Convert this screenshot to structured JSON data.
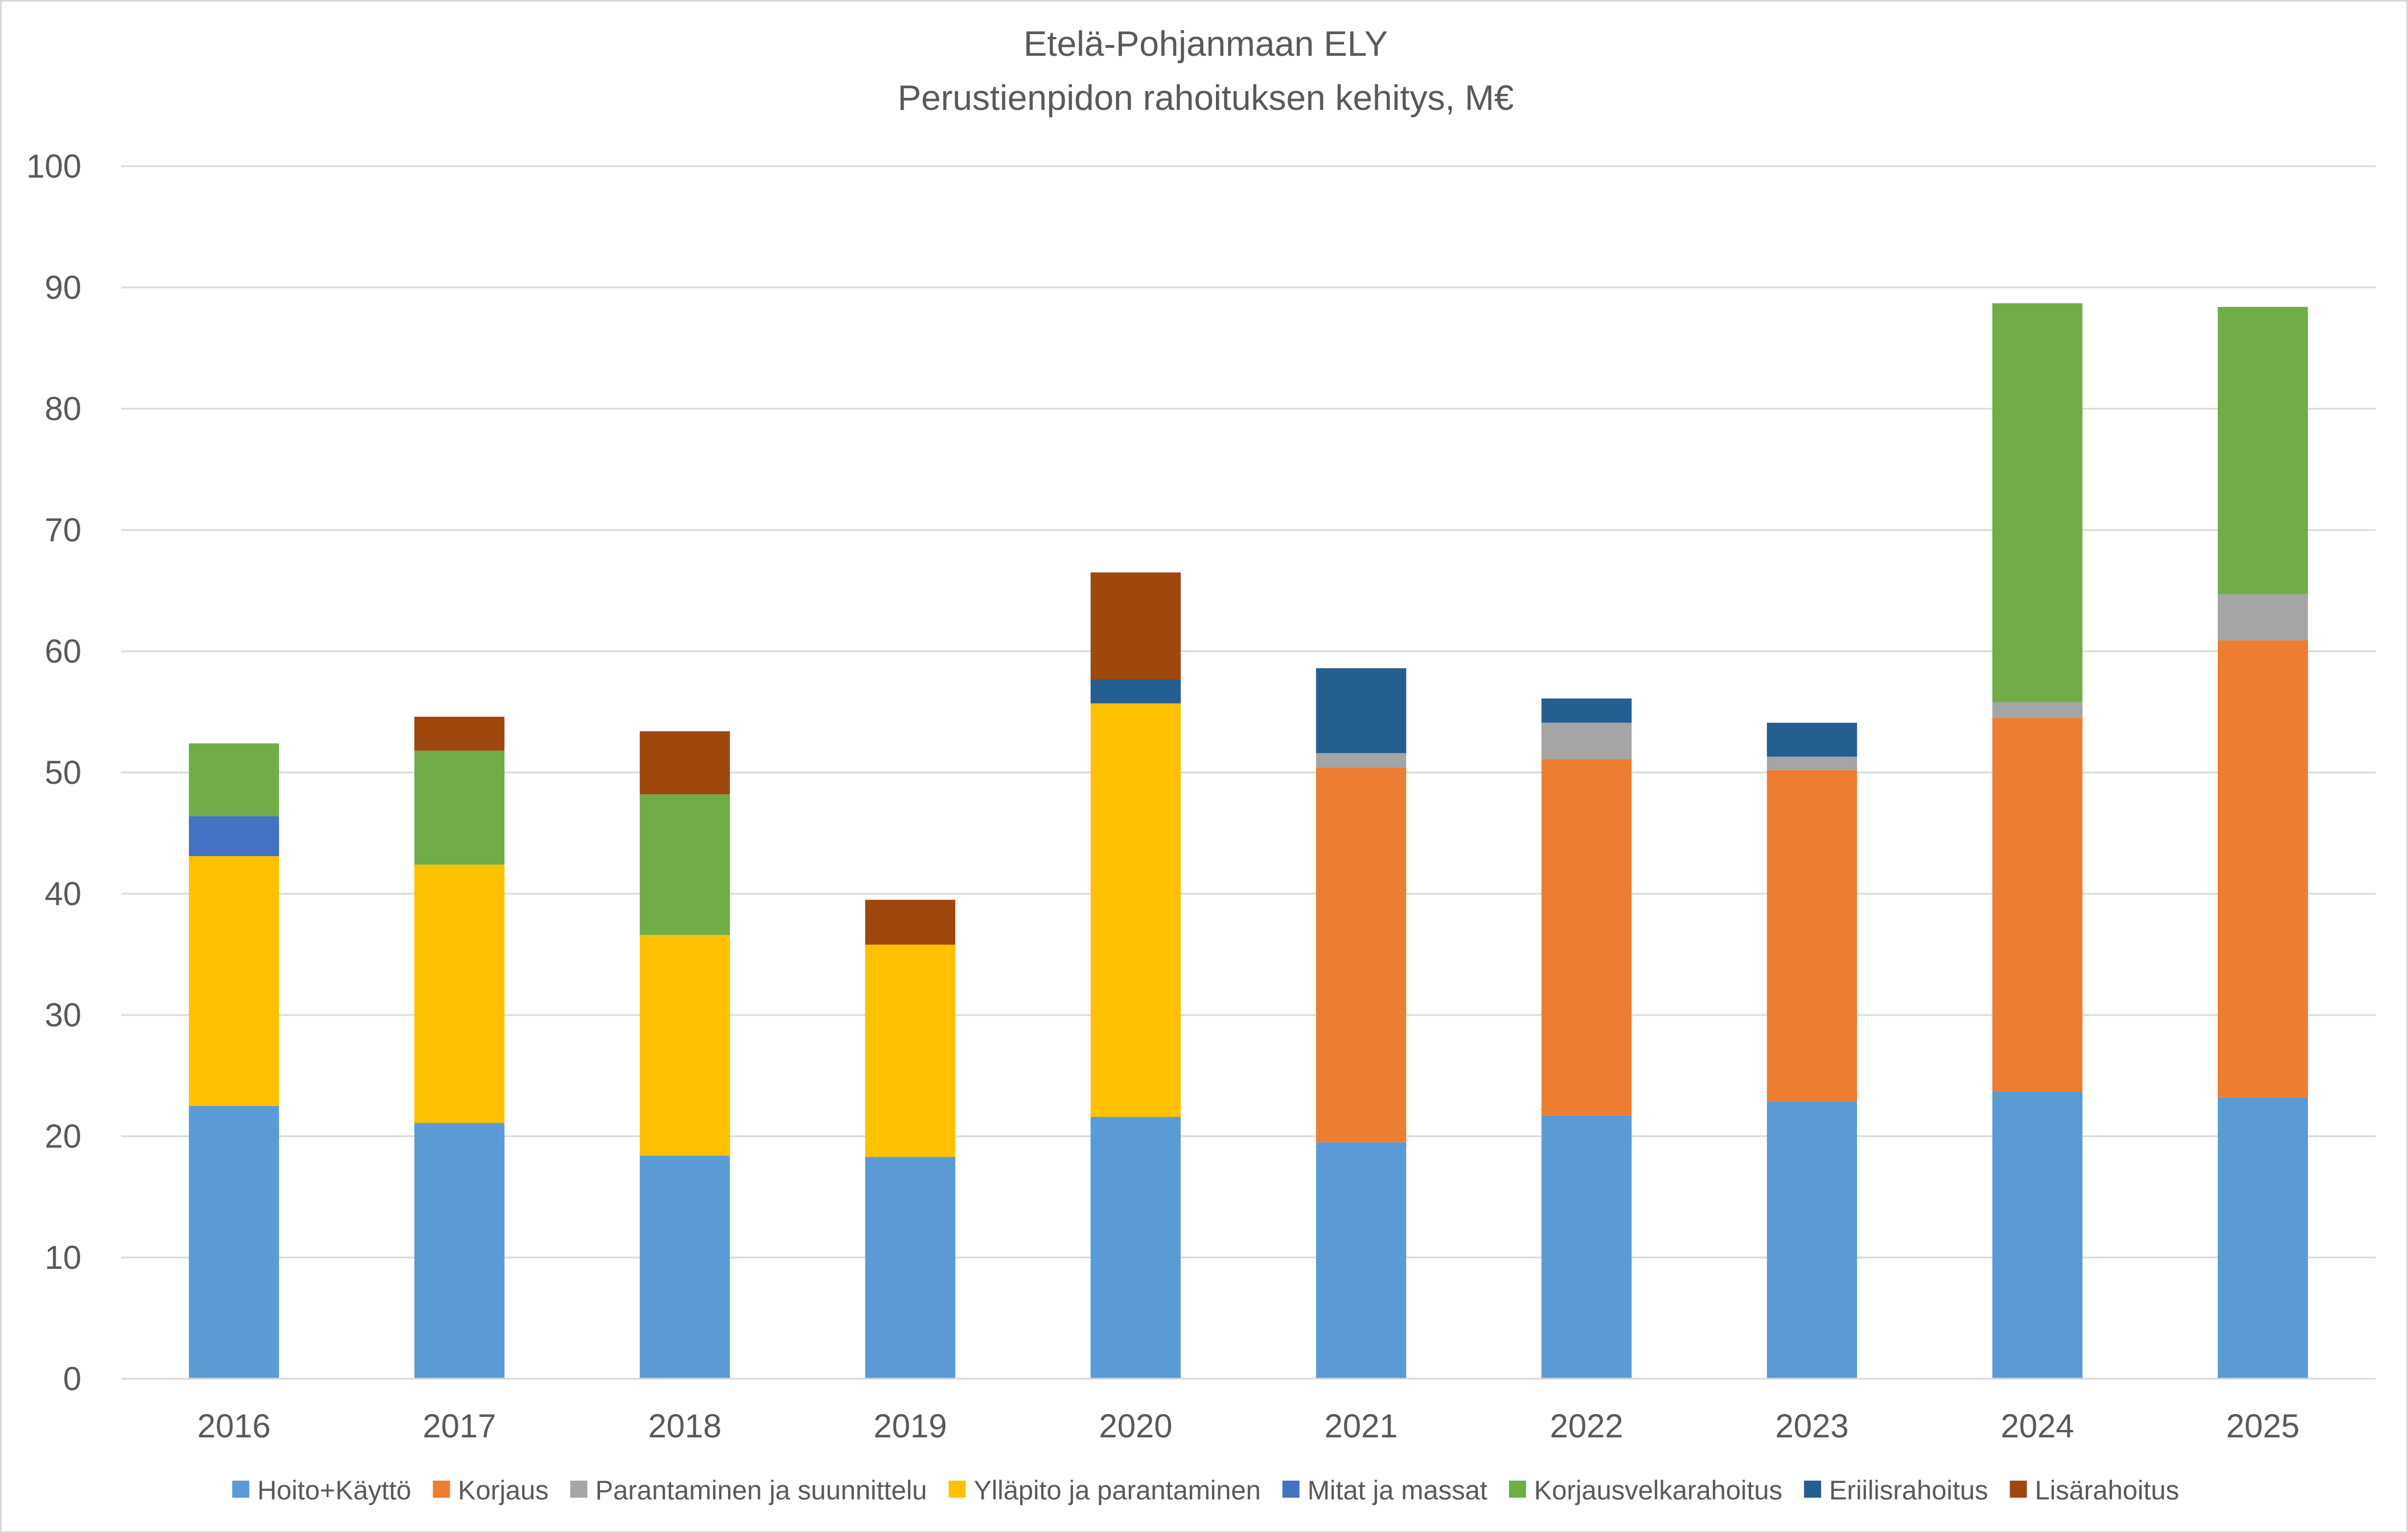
{
  "chart_data": {
    "type": "bar",
    "stacked": true,
    "title": "Etelä-Pohjanmaan ELY",
    "subtitle": "Perustienpidon rahoituksen kehitys, M€",
    "xlabel": "",
    "ylabel": "",
    "ylim": [
      0,
      100
    ],
    "yticks": [
      0,
      10,
      20,
      30,
      40,
      50,
      60,
      70,
      80,
      90,
      100
    ],
    "grid": true,
    "legend_position": "bottom",
    "categories": [
      "2016",
      "2017",
      "2018",
      "2019",
      "2020",
      "2021",
      "2022",
      "2023",
      "2024",
      "2025"
    ],
    "series": [
      {
        "name": "Hoito+Käyttö",
        "color": "#5b9bd5",
        "values": [
          22.5,
          21.1,
          18.4,
          18.3,
          21.6,
          19.5,
          21.7,
          22.9,
          23.7,
          23.2
        ]
      },
      {
        "name": "Korjaus",
        "color": "#ed7d31",
        "values": [
          0,
          0,
          0,
          0,
          0,
          30.9,
          29.4,
          27.3,
          30.8,
          37.7
        ]
      },
      {
        "name": "Parantaminen ja suunnittelu",
        "color": "#a5a5a5",
        "values": [
          0,
          0,
          0,
          0,
          0,
          1.2,
          3.0,
          1.1,
          1.3,
          3.8
        ]
      },
      {
        "name": "Ylläpito ja parantaminen",
        "color": "#ffc000",
        "values": [
          20.6,
          21.3,
          18.2,
          17.5,
          34.1,
          0,
          0,
          0,
          0,
          0
        ]
      },
      {
        "name": "Mitat ja massat",
        "color": "#4472c4",
        "values": [
          3.3,
          0,
          0,
          0,
          0,
          0,
          0,
          0,
          0,
          0
        ]
      },
      {
        "name": "Korjausvelkarahoitus",
        "color": "#70ad47",
        "values": [
          6.0,
          9.4,
          11.6,
          0,
          0,
          0,
          0,
          0,
          32.9,
          23.7
        ]
      },
      {
        "name": "Eriilisrahoitus",
        "color": "#255e91",
        "values": [
          0,
          0,
          0,
          0,
          2.0,
          7.0,
          2.0,
          2.8,
          0,
          0
        ]
      },
      {
        "name": "Lisärahoitus",
        "color": "#9e480e",
        "values": [
          0,
          2.8,
          5.2,
          3.7,
          8.8,
          0,
          0,
          0,
          0,
          0
        ]
      }
    ]
  }
}
